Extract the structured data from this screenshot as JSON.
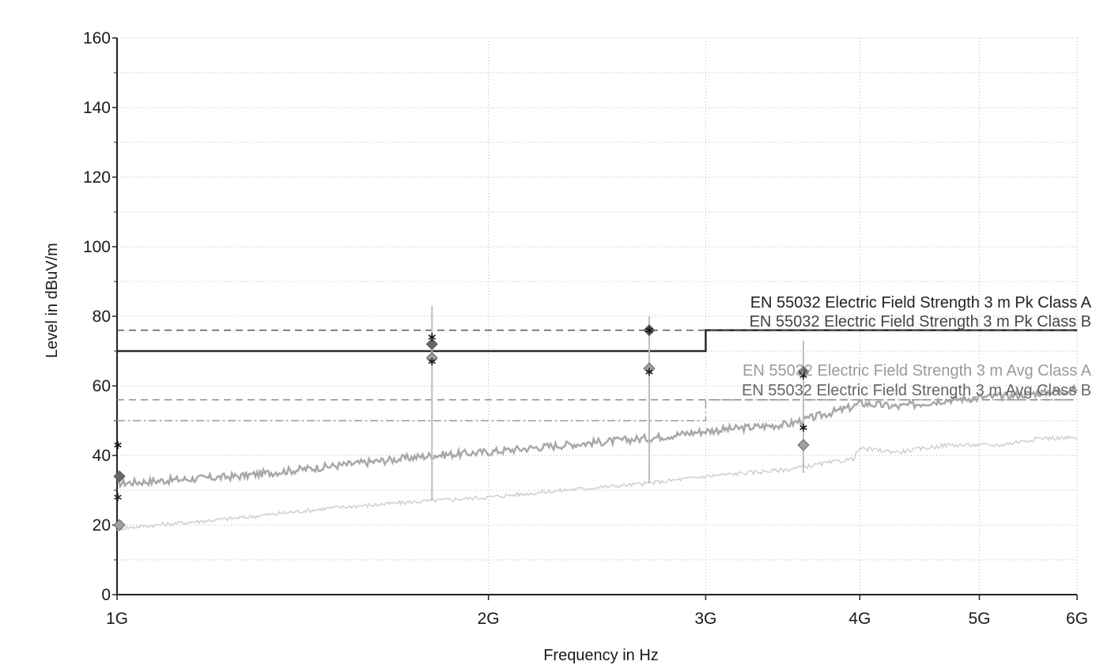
{
  "chart_data": {
    "type": "line",
    "xlabel": "Frequency in Hz",
    "ylabel": "Level in dBuV/m",
    "x_scale": "log",
    "xlim": [
      1000000000,
      6000000000
    ],
    "ylim": [
      0,
      160
    ],
    "grid": true,
    "x_ticks": [
      {
        "value": 1000000000,
        "label": "1G"
      },
      {
        "value": 2000000000,
        "label": "2G"
      },
      {
        "value": 3000000000,
        "label": "3G"
      },
      {
        "value": 4000000000,
        "label": "4G"
      },
      {
        "value": 5000000000,
        "label": "5G"
      },
      {
        "value": 6000000000,
        "label": "6G"
      }
    ],
    "y_ticks": [
      {
        "value": 0,
        "label": "0"
      },
      {
        "value": 20,
        "label": "20"
      },
      {
        "value": 40,
        "label": "40"
      },
      {
        "value": 60,
        "label": "60"
      },
      {
        "value": 80,
        "label": "80"
      },
      {
        "value": 100,
        "label": "100"
      },
      {
        "value": 120,
        "label": "120"
      },
      {
        "value": 140,
        "label": "140"
      },
      {
        "value": 160,
        "label": "160"
      }
    ],
    "limit_lines": [
      {
        "name": "EN 55032 Electric Field Strength 3 m Pk Class A",
        "style": "solid",
        "color": "#2a2a2a",
        "x": [
          1000000000,
          3000000000,
          3000000000,
          6000000000
        ],
        "y": [
          70,
          70,
          76,
          76
        ]
      },
      {
        "name": "EN 55032 Electric Field Strength 3 m Pk Class B",
        "style": "dashed",
        "color": "#555555",
        "x": [
          1000000000,
          3000000000,
          3000000000,
          6000000000
        ],
        "y": [
          76,
          76,
          76,
          76
        ]
      },
      {
        "name": "EN 55032 Electric Field Strength 3 m Avg Class A",
        "style": "dashdot",
        "color": "#9a9a9a",
        "x": [
          1000000000,
          3000000000,
          3000000000,
          6000000000
        ],
        "y": [
          50,
          50,
          56,
          56
        ]
      },
      {
        "name": "EN 55032 Electric Field Strength 3 m Avg Class B",
        "style": "dashed",
        "color": "#8a8a8a",
        "x": [
          1000000000,
          3000000000,
          3000000000,
          6000000000
        ],
        "y": [
          56,
          56,
          56,
          56
        ]
      }
    ],
    "series": [
      {
        "style": "trace",
        "color": "#a8a8a8",
        "x": [
          1000000000,
          1250000000,
          1500000000,
          1800000000,
          2000000000,
          2300000000,
          2700000000,
          3000000000,
          3500000000,
          3950000000,
          4000000000,
          4300000000,
          4700000000,
          5200000000,
          5600000000,
          6000000000
        ],
        "y": [
          32,
          34,
          37,
          40,
          41,
          43,
          45,
          47,
          49,
          54,
          55,
          54,
          56,
          57,
          58,
          59
        ]
      },
      {
        "style": "trace",
        "color": "#cfcfcf",
        "x": [
          1000000000,
          1250000000,
          1500000000,
          1800000000,
          2000000000,
          2300000000,
          2700000000,
          3000000000,
          3500000000,
          3950000000,
          4000000000,
          4300000000,
          4700000000,
          5200000000,
          5600000000,
          6000000000
        ],
        "y": [
          19,
          22,
          25,
          27,
          28,
          30,
          32,
          34,
          36,
          39,
          42,
          41,
          43,
          43,
          45,
          45
        ]
      },
      {
        "style": "drop",
        "color": "#bdbdbd",
        "x": [
          1800000000,
          2700000000,
          3600000000
        ],
        "y_top": [
          83,
          80,
          73
        ],
        "y_bottom": [
          27,
          32,
          35
        ]
      },
      {
        "style": "diamond",
        "color": "#666666",
        "x": [
          1000000000,
          1800000000,
          2700000000,
          3600000000
        ],
        "y": [
          34,
          72,
          76,
          64
        ]
      },
      {
        "style": "diamond",
        "color": "#a0a0a0",
        "x": [
          1000000000,
          1800000000,
          2700000000,
          3600000000
        ],
        "y": [
          20,
          68,
          65,
          43
        ]
      },
      {
        "style": "star",
        "color": "#111111",
        "x": [
          1000000000,
          1800000000,
          2700000000,
          3600000000
        ],
        "y": [
          43,
          74,
          76,
          48
        ]
      },
      {
        "style": "star",
        "color": "#222222",
        "x": [
          1000000000,
          1800000000,
          2700000000,
          3600000000
        ],
        "y": [
          28,
          67,
          64,
          63
        ]
      }
    ]
  }
}
